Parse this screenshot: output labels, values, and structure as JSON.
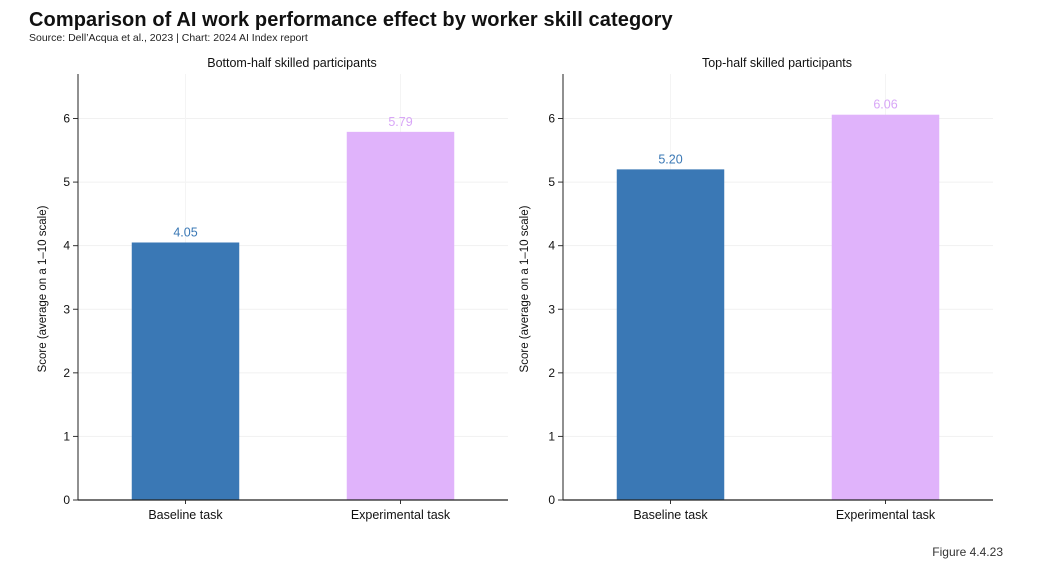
{
  "header": {
    "title": "Comparison of AI work performance effect by worker skill category",
    "source": "Source: Dell’Acqua et al., 2023 | Chart: 2024 AI Index report"
  },
  "footer": {
    "figure_label": "Figure 4.4.23"
  },
  "colors": {
    "baseline": "#3a78b5",
    "experimental": "#e0b3fb",
    "baseline_label": "#3a78b5",
    "experimental_label": "#d8a6f7"
  },
  "chart_data": [
    {
      "type": "bar",
      "title": "Bottom-half skilled participants",
      "ylabel": "Score (average on a 1–10 scale)",
      "categories": [
        "Baseline task",
        "Experimental task"
      ],
      "values": [
        4.05,
        5.79
      ],
      "value_labels": [
        "4.05",
        "5.79"
      ],
      "ylim": [
        0,
        6.7
      ],
      "yticks": [
        "0",
        "1",
        "2",
        "3",
        "4",
        "5",
        "6"
      ],
      "grid": true
    },
    {
      "type": "bar",
      "title": "Top-half skilled participants",
      "ylabel": "Score (average on a 1–10 scale)",
      "categories": [
        "Baseline task",
        "Experimental task"
      ],
      "values": [
        5.2,
        6.06
      ],
      "value_labels": [
        "5.20",
        "6.06"
      ],
      "ylim": [
        0,
        6.7
      ],
      "yticks": [
        "0",
        "1",
        "2",
        "3",
        "4",
        "5",
        "6"
      ],
      "grid": true
    }
  ]
}
